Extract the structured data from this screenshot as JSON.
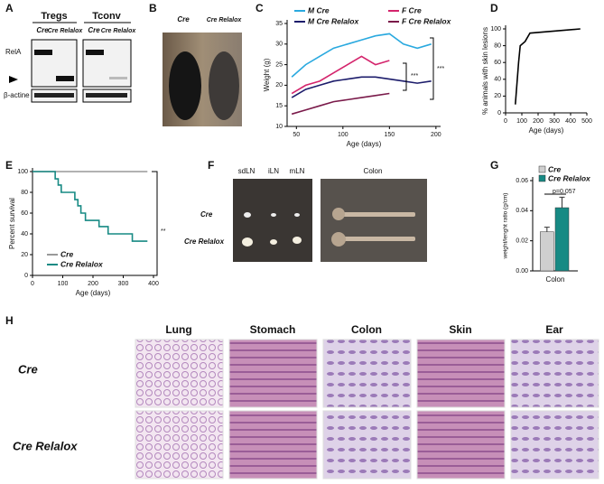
{
  "panel_labels": [
    "A",
    "B",
    "C",
    "D",
    "E",
    "F",
    "G",
    "H"
  ],
  "blot": {
    "groups": [
      "Tregs",
      "Tconv"
    ],
    "lanes": [
      "Cre",
      "Cre Relalox",
      "Cre",
      "Cre Relalox"
    ],
    "rows": [
      "RelA",
      "β-actine"
    ]
  },
  "mice": {
    "labels": [
      "Cre",
      "Cre Relalox"
    ]
  },
  "lymph": {
    "nodes": [
      "sdLN",
      "iLN",
      "mLN"
    ],
    "colon": "Colon",
    "rows": [
      "Cre",
      "Cre Relalox"
    ]
  },
  "histology": {
    "columns": [
      "Lung",
      "Stomach",
      "Colon",
      "Skin",
      "Ear"
    ],
    "rows": [
      "Cre",
      "Cre Relalox"
    ]
  },
  "chart_data": [
    {
      "type": "line",
      "xlabel": "Age (days)",
      "ylabel": "Weight (g)",
      "x": [
        45,
        60,
        75,
        90,
        105,
        120,
        135,
        150,
        165,
        180,
        195
      ],
      "series": [
        {
          "name": "M Cre",
          "color": "#2aa9df",
          "values": [
            22,
            25,
            27,
            29,
            30,
            31,
            32,
            32.5,
            30,
            29,
            30
          ]
        },
        {
          "name": "M Cre Relalox",
          "color": "#1c1c6b",
          "values": [
            17,
            19,
            20,
            21,
            21.5,
            22,
            22,
            21.5,
            21,
            20.5,
            21
          ]
        },
        {
          "name": "F Cre",
          "color": "#d4246c",
          "values": [
            18,
            20,
            21,
            23,
            25,
            27,
            25,
            26,
            null,
            null,
            null
          ]
        },
        {
          "name": "F Cre Relalox",
          "color": "#7a1a4a",
          "values": [
            13,
            14,
            15,
            16,
            16.5,
            17,
            17.5,
            18,
            null,
            null,
            null
          ]
        }
      ],
      "xlim": [
        40,
        205
      ],
      "ylim": [
        10,
        35
      ],
      "xticks": [
        50,
        100,
        150,
        200
      ],
      "yticks": [
        10,
        15,
        20,
        25,
        30,
        35
      ],
      "annotations": [
        "***",
        "***"
      ]
    },
    {
      "type": "line",
      "xlabel": "Age (days)",
      "ylabel": "% animals with skin lesions",
      "x": [
        60,
        80,
        90,
        120,
        150,
        460
      ],
      "series": [
        {
          "name": "",
          "color": "#000000",
          "values": [
            10,
            60,
            80,
            85,
            95,
            100
          ]
        }
      ],
      "xlim": [
        0,
        500
      ],
      "ylim": [
        0,
        100
      ],
      "xticks": [
        0,
        100,
        200,
        300,
        400,
        500
      ],
      "yticks": [
        0,
        20,
        40,
        60,
        80,
        100
      ]
    },
    {
      "type": "line",
      "step": true,
      "xlabel": "Age (days)",
      "ylabel": "Percent survival",
      "x": [
        0,
        75,
        85,
        95,
        140,
        150,
        160,
        175,
        220,
        250,
        330,
        380
      ],
      "series": [
        {
          "name": "Cre",
          "color": "#999999",
          "values": [
            100,
            100,
            100,
            100,
            100,
            100,
            100,
            100,
            100,
            100,
            100,
            100
          ]
        },
        {
          "name": "Cre Relalox",
          "color": "#178a84",
          "values": [
            100,
            93,
            87,
            80,
            73,
            67,
            60,
            53,
            47,
            40,
            33,
            33
          ]
        }
      ],
      "xlim": [
        0,
        400
      ],
      "ylim": [
        0,
        100
      ],
      "xticks": [
        0,
        100,
        200,
        300,
        400
      ],
      "yticks": [
        0,
        20,
        40,
        60,
        80,
        100
      ],
      "annotations": [
        "**"
      ]
    },
    {
      "type": "bar",
      "xlabel": "Colon",
      "ylabel": "weight/lenght ratio (g/cm)",
      "series": [
        {
          "name": "Cre",
          "color": "#cfcfcf",
          "values": [
            0.026
          ],
          "errors": [
            0.003
          ]
        },
        {
          "name": "Cre Relalox",
          "color": "#178a84",
          "values": [
            0.042
          ],
          "errors": [
            0.007
          ]
        }
      ],
      "ylim": [
        0,
        0.06
      ],
      "yticks": [
        {
          "value": 0,
          "label": "0.00"
        },
        {
          "value": 0.02,
          "label": "0.02"
        },
        {
          "value": 0.04,
          "label": "0.04"
        },
        {
          "value": 0.06,
          "label": "0.06"
        }
      ],
      "annotations": [
        "p=0.057"
      ]
    }
  ]
}
